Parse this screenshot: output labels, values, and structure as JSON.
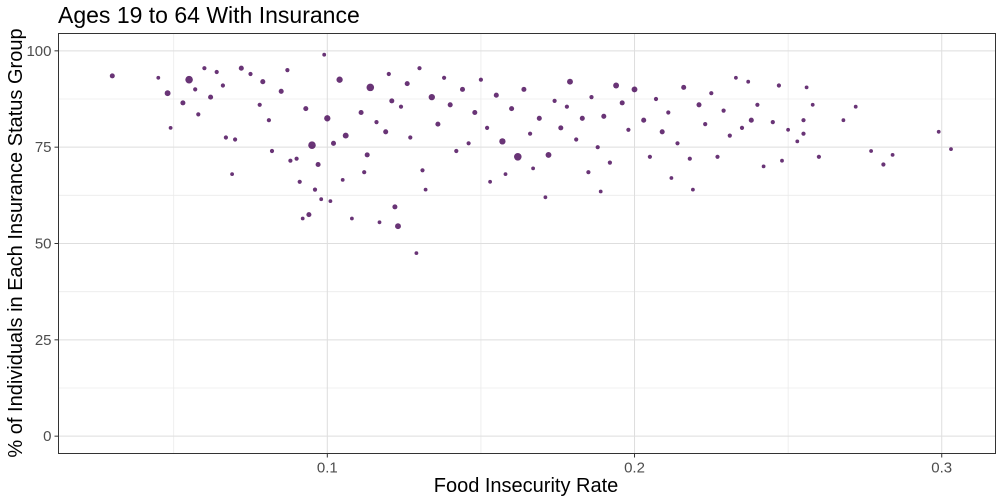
{
  "chart_data": {
    "type": "scatter",
    "title": "Ages 19 to 64 With Insurance",
    "xlabel": "Food Insecurity Rate",
    "ylabel": "% of Individuals in Each Insurance Status Group",
    "xlim": [
      0.0125,
      0.3175
    ],
    "ylim": [
      -4.5,
      104.5
    ],
    "x_ticks": [
      0.1,
      0.2,
      0.3
    ],
    "x_tick_labels": [
      "0.1",
      "0.2",
      "0.3"
    ],
    "x_minor_ticks": [
      0.05,
      0.15,
      0.25
    ],
    "y_ticks": [
      0,
      25,
      50,
      75,
      100
    ],
    "y_tick_labels": [
      "0",
      "25",
      "50",
      "75",
      "100"
    ],
    "y_minor_ticks": [
      12.5,
      37.5,
      62.5,
      87.5
    ],
    "grid": true,
    "legend": "none",
    "point_color": "#440154",
    "point_opacity": 0.8,
    "points": [
      [
        0.03,
        93.5,
        1.2
      ],
      [
        0.045,
        93.0,
        0.9
      ],
      [
        0.048,
        89.0,
        1.4
      ],
      [
        0.049,
        80.0,
        0.9
      ],
      [
        0.053,
        86.5,
        1.2
      ],
      [
        0.055,
        92.5,
        1.8
      ],
      [
        0.057,
        90.0,
        1.0
      ],
      [
        0.058,
        83.5,
        1.0
      ],
      [
        0.06,
        95.5,
        1.0
      ],
      [
        0.062,
        88.0,
        1.2
      ],
      [
        0.064,
        94.5,
        1.0
      ],
      [
        0.066,
        91.0,
        1.0
      ],
      [
        0.067,
        77.5,
        1.0
      ],
      [
        0.069,
        68.0,
        0.9
      ],
      [
        0.07,
        77.0,
        1.0
      ],
      [
        0.072,
        95.5,
        1.2
      ],
      [
        0.075,
        94.0,
        1.0
      ],
      [
        0.078,
        86.0,
        1.0
      ],
      [
        0.079,
        92.0,
        1.2
      ],
      [
        0.081,
        82.0,
        1.0
      ],
      [
        0.082,
        74.0,
        1.0
      ],
      [
        0.085,
        89.5,
        1.2
      ],
      [
        0.087,
        95.0,
        1.0
      ],
      [
        0.088,
        71.5,
        1.0
      ],
      [
        0.09,
        72.0,
        1.0
      ],
      [
        0.091,
        66.0,
        1.0
      ],
      [
        0.092,
        56.5,
        0.9
      ],
      [
        0.093,
        85.0,
        1.2
      ],
      [
        0.094,
        57.5,
        1.2
      ],
      [
        0.095,
        75.5,
        1.8
      ],
      [
        0.096,
        64.0,
        1.0
      ],
      [
        0.097,
        70.5,
        1.2
      ],
      [
        0.098,
        61.5,
        0.9
      ],
      [
        0.099,
        99.0,
        0.9
      ],
      [
        0.1,
        82.5,
        1.5
      ],
      [
        0.101,
        61.0,
        0.9
      ],
      [
        0.102,
        76.0,
        1.2
      ],
      [
        0.104,
        92.5,
        1.5
      ],
      [
        0.105,
        66.5,
        0.9
      ],
      [
        0.106,
        78.0,
        1.4
      ],
      [
        0.108,
        56.5,
        0.9
      ],
      [
        0.111,
        84.0,
        1.2
      ],
      [
        0.112,
        68.5,
        1.0
      ],
      [
        0.113,
        73.0,
        1.2
      ],
      [
        0.114,
        90.5,
        1.8
      ],
      [
        0.116,
        81.5,
        1.0
      ],
      [
        0.117,
        55.5,
        0.9
      ],
      [
        0.119,
        79.0,
        1.2
      ],
      [
        0.12,
        94.0,
        1.0
      ],
      [
        0.121,
        87.0,
        1.2
      ],
      [
        0.122,
        59.5,
        1.2
      ],
      [
        0.123,
        54.5,
        1.4
      ],
      [
        0.124,
        85.5,
        1.0
      ],
      [
        0.126,
        91.5,
        1.2
      ],
      [
        0.127,
        77.5,
        1.0
      ],
      [
        0.129,
        47.5,
        0.9
      ],
      [
        0.13,
        95.5,
        1.0
      ],
      [
        0.131,
        69.0,
        1.0
      ],
      [
        0.132,
        64.0,
        0.9
      ],
      [
        0.134,
        88.0,
        1.5
      ],
      [
        0.136,
        81.0,
        1.2
      ],
      [
        0.138,
        93.0,
        1.0
      ],
      [
        0.14,
        86.0,
        1.2
      ],
      [
        0.142,
        74.0,
        1.0
      ],
      [
        0.144,
        90.0,
        1.2
      ],
      [
        0.146,
        76.0,
        1.0
      ],
      [
        0.148,
        84.0,
        1.2
      ],
      [
        0.15,
        92.5,
        1.0
      ],
      [
        0.152,
        80.0,
        1.0
      ],
      [
        0.153,
        66.0,
        0.9
      ],
      [
        0.155,
        88.5,
        1.2
      ],
      [
        0.157,
        76.5,
        1.5
      ],
      [
        0.158,
        68.0,
        0.9
      ],
      [
        0.16,
        85.0,
        1.2
      ],
      [
        0.162,
        72.5,
        1.8
      ],
      [
        0.164,
        90.0,
        1.2
      ],
      [
        0.166,
        78.5,
        1.0
      ],
      [
        0.167,
        69.5,
        0.9
      ],
      [
        0.169,
        82.5,
        1.2
      ],
      [
        0.171,
        62.0,
        0.9
      ],
      [
        0.172,
        73.0,
        1.4
      ],
      [
        0.174,
        87.0,
        1.0
      ],
      [
        0.176,
        80.0,
        1.2
      ],
      [
        0.178,
        85.5,
        1.0
      ],
      [
        0.179,
        92.0,
        1.4
      ],
      [
        0.181,
        77.0,
        1.0
      ],
      [
        0.183,
        82.5,
        1.2
      ],
      [
        0.185,
        68.5,
        1.0
      ],
      [
        0.186,
        88.0,
        1.0
      ],
      [
        0.188,
        75.0,
        1.0
      ],
      [
        0.189,
        63.5,
        0.9
      ],
      [
        0.19,
        83.0,
        1.2
      ],
      [
        0.192,
        71.0,
        1.0
      ],
      [
        0.194,
        91.0,
        1.4
      ],
      [
        0.196,
        86.5,
        1.2
      ],
      [
        0.198,
        79.5,
        1.0
      ],
      [
        0.2,
        90.0,
        1.4
      ],
      [
        0.203,
        82.0,
        1.2
      ],
      [
        0.205,
        72.5,
        1.0
      ],
      [
        0.207,
        87.5,
        1.0
      ],
      [
        0.209,
        79.0,
        1.2
      ],
      [
        0.211,
        84.0,
        1.0
      ],
      [
        0.212,
        67.0,
        0.9
      ],
      [
        0.214,
        76.0,
        1.0
      ],
      [
        0.216,
        90.5,
        1.2
      ],
      [
        0.218,
        72.0,
        1.0
      ],
      [
        0.219,
        64.0,
        0.9
      ],
      [
        0.221,
        86.0,
        1.2
      ],
      [
        0.223,
        81.0,
        1.0
      ],
      [
        0.225,
        89.0,
        1.0
      ],
      [
        0.227,
        72.5,
        1.0
      ],
      [
        0.229,
        84.5,
        1.0
      ],
      [
        0.231,
        78.0,
        1.0
      ],
      [
        0.233,
        93.0,
        0.9
      ],
      [
        0.235,
        80.0,
        1.0
      ],
      [
        0.237,
        92.0,
        0.9
      ],
      [
        0.238,
        82.0,
        1.2
      ],
      [
        0.24,
        86.0,
        1.0
      ],
      [
        0.242,
        70.0,
        0.9
      ],
      [
        0.245,
        81.5,
        1.0
      ],
      [
        0.247,
        91.0,
        1.0
      ],
      [
        0.248,
        71.5,
        0.9
      ],
      [
        0.25,
        79.5,
        0.9
      ],
      [
        0.253,
        76.5,
        0.9
      ],
      [
        0.255,
        78.5,
        1.0
      ],
      [
        0.255,
        82.0,
        1.0
      ],
      [
        0.256,
        90.5,
        0.9
      ],
      [
        0.258,
        86.0,
        0.9
      ],
      [
        0.26,
        72.5,
        1.0
      ],
      [
        0.268,
        82.0,
        0.9
      ],
      [
        0.272,
        85.5,
        0.9
      ],
      [
        0.277,
        74.0,
        0.9
      ],
      [
        0.281,
        70.5,
        1.0
      ],
      [
        0.284,
        73.0,
        0.9
      ],
      [
        0.299,
        79.0,
        0.9
      ],
      [
        0.303,
        74.5,
        0.9
      ]
    ]
  }
}
